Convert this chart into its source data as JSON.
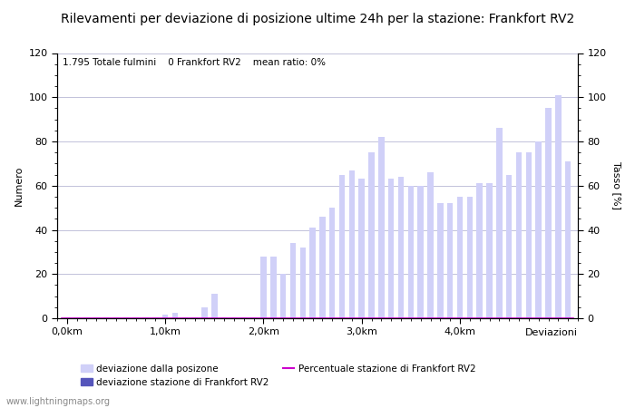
{
  "title": "Rilevamenti per deviazione di posizione ultime 24h per la stazione: Frankfort RV2",
  "subtitle": "1.795 Totale fulmini    0 Frankfort RV2    mean ratio: 0%",
  "ylabel_left": "Numero",
  "ylabel_right": "Tasso [%]",
  "xlabel": "Deviazioni",
  "footer": "www.lightningmaps.org",
  "ylim": [
    0,
    120
  ],
  "xtick_labels": [
    "0,0km",
    "1,0km",
    "2,0km",
    "3,0km",
    "4,0km"
  ],
  "xtick_positions": [
    0,
    10,
    20,
    30,
    40
  ],
  "legend_entries": [
    {
      "label": "deviazione dalla posizone",
      "color": "#c8c8f0",
      "type": "bar"
    },
    {
      "label": "deviazione stazione di Frankfort RV2",
      "color": "#5555bb",
      "type": "bar"
    },
    {
      "label": "Percentuale stazione di Frankfort RV2",
      "color": "#cc00cc",
      "type": "line"
    }
  ],
  "bar_values": [
    0.3,
    0.3,
    0.3,
    0.3,
    0.3,
    0.3,
    0.3,
    0.3,
    0.3,
    0.3,
    1.5,
    2.5,
    0.3,
    0.3,
    5.0,
    11.0,
    0.3,
    0.3,
    0.3,
    0.3,
    28.0,
    28.0,
    20.0,
    34.0,
    32.0,
    41.0,
    46.0,
    50.0,
    65.0,
    67.0,
    63.0,
    75.0,
    82.0,
    63.0,
    64.0,
    60.0,
    60.0,
    66.0,
    52.0,
    52.0,
    55.0,
    55.0,
    61.0,
    61.0,
    86.0,
    65.0,
    75.0,
    75.0,
    80.0,
    95.0,
    101.0,
    71.0
  ],
  "bar_color_light": "#d0d0f8",
  "bar_color_dark": "#5555bb",
  "line_color": "#cc00cc",
  "bg_color": "#ffffff",
  "grid_color": "#aaaacc",
  "title_fontsize": 10,
  "axis_fontsize": 8,
  "tick_fontsize": 8,
  "subtitle_fontsize": 7.5
}
